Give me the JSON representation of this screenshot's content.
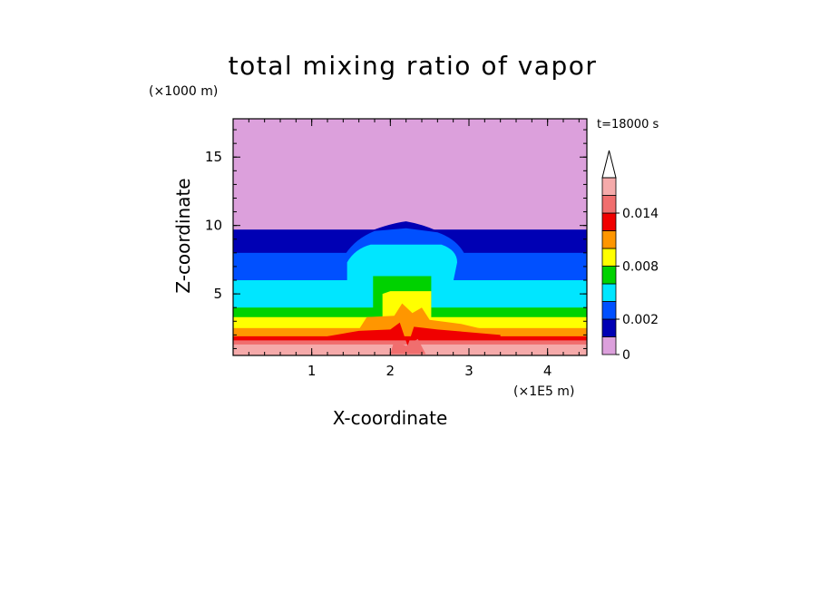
{
  "chart_data": {
    "type": "contour",
    "title": "total mixing ratio of vapor",
    "xlabel": "X-coordinate",
    "ylabel": "Z-coordinate",
    "x_unit": "(×1E5 m)",
    "y_unit": "(×1000 m)",
    "time_label": "t=18000 s",
    "xlim": [
      0,
      4.5
    ],
    "ylim": [
      0.5,
      17.8
    ],
    "x_ticks": [
      1,
      2,
      3,
      4
    ],
    "y_ticks": [
      5,
      10,
      15
    ],
    "colorbar": {
      "levels": [
        0,
        0.001,
        0.002,
        0.004,
        0.006,
        0.008,
        0.01,
        0.012,
        0.014,
        0.016
      ],
      "labeled_levels": [
        0,
        0.002,
        0.008,
        0.014
      ],
      "tick_labels": [
        "0",
        "0.002",
        "0.008",
        "0.014"
      ],
      "colors": [
        "#dca0dc",
        "#0000b4",
        "#0050ff",
        "#00e6ff",
        "#00d200",
        "#ffff00",
        "#ff9600",
        "#f00000",
        "#f06e6e",
        "#f5aaaa"
      ],
      "extend": "max"
    },
    "field_bands": [
      {
        "level": 0,
        "color": "#dca0dc",
        "z_top": 17.8
      },
      {
        "level": 0.001,
        "color": "#0000b4",
        "z_top": 9.7
      },
      {
        "level": 0.002,
        "color": "#0050ff",
        "z_top": 8.0
      },
      {
        "level": 0.004,
        "color": "#00e6ff",
        "z_top": 6.0
      },
      {
        "level": 0.006,
        "color": "#00d200",
        "z_top": 4.0
      },
      {
        "level": 0.008,
        "color": "#ffff00",
        "z_top": 3.3
      },
      {
        "level": 0.01,
        "color": "#ff9600",
        "z_top": 2.5
      },
      {
        "level": 0.012,
        "color": "#f00000",
        "z_top": 1.9
      },
      {
        "level": 0.014,
        "color": "#f06e6e",
        "z_top": 1.6
      },
      {
        "level": 0.016,
        "color": "#f5aaaa",
        "z_top": 1.3
      }
    ],
    "anomaly": {
      "description_hidden": true,
      "x_center": 2.2
    }
  }
}
